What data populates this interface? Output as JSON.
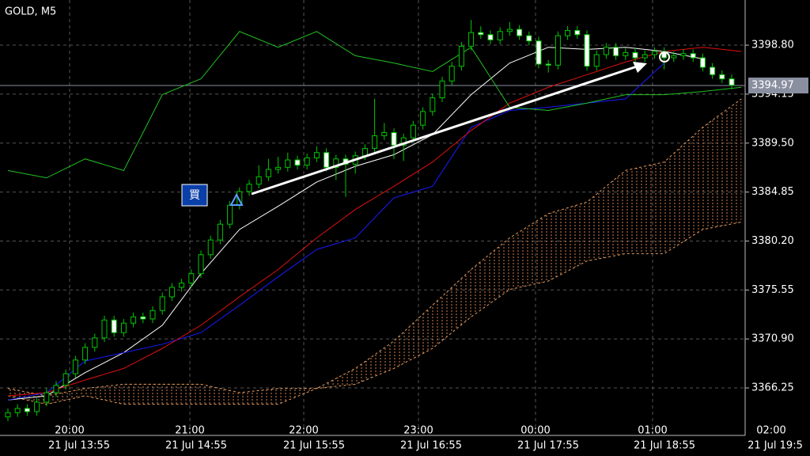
{
  "chart_data": {
    "type": "candlestick",
    "title": "GOLD, M5",
    "ylim": [
      3361.89,
      3403.09
    ],
    "yticks": [
      {
        "value": 3398.8,
        "label": "3398.80"
      },
      3394.15,
      {
        "value": 3389.5,
        "label": "3389.50"
      },
      3384.85,
      {
        "value": 3380.2,
        "label": "3380.20"
      },
      3375.55,
      {
        "value": 3370.9,
        "label": "3370.90"
      },
      3366.25
    ],
    "grid": true,
    "x_hour_labels": [
      "20:00",
      "21:00",
      "22:00",
      "23:00",
      "00:00",
      "01:00",
      "02:00"
    ],
    "x_date_labels": [
      "21 Jul 13:55",
      "21 Jul 14:55",
      "21 Jul 15:55",
      "21 Jul 16:55",
      "21 Jul 17:55",
      "21 Jul 18:55",
      "21 Jul 19:5"
    ],
    "up_color": "#00c800",
    "down_color": "#ffffff",
    "open": [
      3363.5,
      3363.9,
      3364.3,
      3364.0,
      3364.9,
      3365.8,
      3366.5,
      3367.6,
      3368.9,
      3370.1,
      3371.0,
      3372.7,
      3371.5,
      3372.4,
      3373.0,
      3372.8,
      3373.6,
      3374.9,
      3375.8,
      3376.2,
      3377.1,
      3378.9,
      3380.3,
      3381.8,
      3383.6,
      3384.9,
      3385.6,
      3386.3,
      3387.0,
      3387.2,
      3387.9,
      3387.4,
      3388.1,
      3388.6,
      3387.2,
      3388.0,
      3387.5,
      3388.3,
      3389.0,
      3390.2,
      3390.5,
      3389.3,
      3390.0,
      3391.2,
      3392.5,
      3393.8,
      3395.4,
      3396.8,
      3398.7,
      3400.0,
      3399.8,
      3399.3,
      3400.1,
      3400.3,
      3399.7,
      3399.2,
      3397.0,
      3396.9,
      3399.7,
      3400.2,
      3399.8,
      3396.8,
      3397.9,
      3398.6,
      3397.8,
      3398.1,
      3397.6,
      3397.9,
      3398.2,
      3397.6,
      3397.8,
      3398.0,
      3397.6,
      3396.7,
      3396.0,
      3395.6
    ],
    "high": [
      3364.3,
      3364.7,
      3364.7,
      3365.3,
      3366.2,
      3366.9,
      3368.0,
      3369.3,
      3370.5,
      3371.4,
      3373.1,
      3373.1,
      3372.8,
      3373.4,
      3373.4,
      3374.0,
      3375.3,
      3376.2,
      3376.6,
      3377.5,
      3379.3,
      3380.7,
      3382.2,
      3384.0,
      3385.3,
      3386.0,
      3387.4,
      3388.0,
      3388.2,
      3388.6,
      3388.3,
      3388.5,
      3389.2,
      3389.0,
      3388.4,
      3388.4,
      3388.7,
      3389.4,
      3393.7,
      3391.4,
      3390.9,
      3390.4,
      3391.6,
      3392.9,
      3394.2,
      3395.8,
      3397.2,
      3399.1,
      3401.2,
      3400.6,
      3400.2,
      3400.5,
      3401.0,
      3400.7,
      3400.1,
      3399.6,
      3397.4,
      3400.1,
      3400.6,
      3400.6,
      3400.2,
      3398.3,
      3399.0,
      3399.0,
      3398.5,
      3398.5,
      3398.3,
      3398.6,
      3398.6,
      3398.2,
      3398.4,
      3398.4,
      3398.0,
      3397.1,
      3396.4,
      3396.0
    ],
    "low": [
      3363.1,
      3363.5,
      3363.6,
      3363.6,
      3364.5,
      3365.4,
      3366.1,
      3367.2,
      3368.5,
      3369.7,
      3370.6,
      3371.1,
      3371.1,
      3372.0,
      3372.4,
      3372.4,
      3373.2,
      3374.5,
      3375.4,
      3375.8,
      3376.7,
      3378.5,
      3379.9,
      3381.4,
      3383.2,
      3384.5,
      3385.2,
      3385.9,
      3386.6,
      3386.8,
      3387.0,
      3387.0,
      3387.7,
      3386.8,
      3386.0,
      3384.4,
      3386.6,
      3387.9,
      3388.6,
      3389.8,
      3388.0,
      3387.8,
      3389.6,
      3390.8,
      3392.1,
      3393.4,
      3395.0,
      3396.4,
      3398.3,
      3399.4,
      3398.9,
      3398.9,
      3399.7,
      3399.3,
      3398.8,
      3396.6,
      3396.2,
      3396.5,
      3399.3,
      3399.4,
      3396.4,
      3396.4,
      3397.5,
      3397.4,
      3397.4,
      3397.2,
      3397.2,
      3397.5,
      3396.5,
      3397.2,
      3397.4,
      3397.2,
      3396.3,
      3395.6,
      3395.2,
      3394.6
    ],
    "close": [
      3363.9,
      3364.3,
      3364.0,
      3364.9,
      3365.8,
      3366.5,
      3367.6,
      3368.9,
      3370.1,
      3371.0,
      3372.7,
      3371.5,
      3372.4,
      3373.0,
      3372.8,
      3373.6,
      3374.9,
      3375.8,
      3376.2,
      3377.1,
      3378.9,
      3380.3,
      3381.8,
      3383.6,
      3384.9,
      3385.6,
      3386.3,
      3387.0,
      3387.2,
      3387.9,
      3387.4,
      3388.1,
      3388.6,
      3387.2,
      3388.0,
      3387.5,
      3388.3,
      3389.0,
      3390.2,
      3390.5,
      3389.3,
      3390.0,
      3391.2,
      3392.5,
      3393.8,
      3395.4,
      3396.8,
      3398.7,
      3400.0,
      3399.8,
      3399.3,
      3400.1,
      3400.3,
      3399.7,
      3399.2,
      3397.0,
      3396.9,
      3399.7,
      3400.2,
      3399.8,
      3396.8,
      3397.9,
      3398.6,
      3397.8,
      3398.1,
      3397.6,
      3397.9,
      3398.2,
      3397.6,
      3397.8,
      3398.0,
      3397.6,
      3396.7,
      3396.0,
      3395.6,
      3395.0
    ],
    "series": [
      {
        "color": "#ffffff",
        "values": [
          3365.1,
          3365.5,
          3367.7,
          3369.6,
          3372.2,
          3377.1,
          3381.3,
          3383.5,
          3385.8,
          3387.3,
          3388.4,
          3390.3,
          3394.1,
          3397.1,
          3398.6,
          3398.4,
          3398.6,
          3398.2,
          3397.5,
          null
        ]
      },
      {
        "color": "#1a1aff",
        "values": [
          3365.1,
          3365.8,
          3368.8,
          3369.6,
          3370.4,
          3371.5,
          3374.1,
          3376.8,
          3379.4,
          3380.5,
          3384.3,
          3385.4,
          3391.0,
          3392.6,
          3392.9,
          3393.3,
          3393.7,
          3397.1,
          null,
          null
        ]
      },
      {
        "color": "#e01010",
        "values": [
          3365.5,
          3365.8,
          3367.0,
          3368.1,
          3370.0,
          3372.2,
          3374.9,
          3377.5,
          3380.5,
          3383.2,
          3385.4,
          3387.7,
          3390.7,
          3393.3,
          3394.8,
          3396.0,
          3397.2,
          3398.2,
          3398.6,
          3398.2
        ]
      },
      {
        "color": "#22c022",
        "values": [
          3386.9,
          3386.2,
          3388.0,
          3386.9,
          3394.1,
          3395.6,
          3400.1,
          3398.6,
          3400.1,
          3397.8,
          3397.1,
          3396.3,
          3398.6,
          3392.9,
          3392.6,
          3393.3,
          3394.1,
          3394.1,
          3394.4,
          3394.8
        ]
      },
      {
        "color": "#e8a060",
        "dashed": true,
        "values": [
          3366.2,
          3365.5,
          3366.2,
          3366.6,
          3366.6,
          3366.6,
          3365.8,
          3366.2,
          3366.2,
          3368.1,
          3370.7,
          3374.1,
          3377.5,
          3380.5,
          3382.8,
          3383.9,
          3386.9,
          3387.7,
          3391.0,
          3393.7
        ]
      },
      {
        "color": "#e8a060",
        "dashed": true,
        "values": [
          3365.5,
          3364.7,
          3365.5,
          3364.7,
          3364.7,
          3364.7,
          3364.7,
          3364.7,
          3366.2,
          3366.6,
          3368.1,
          3370.0,
          3373.0,
          3375.6,
          3376.4,
          3378.3,
          3379.0,
          3379.0,
          3381.3,
          3382.0
        ]
      }
    ],
    "current_price": 3394.97,
    "buy_label": "買"
  }
}
